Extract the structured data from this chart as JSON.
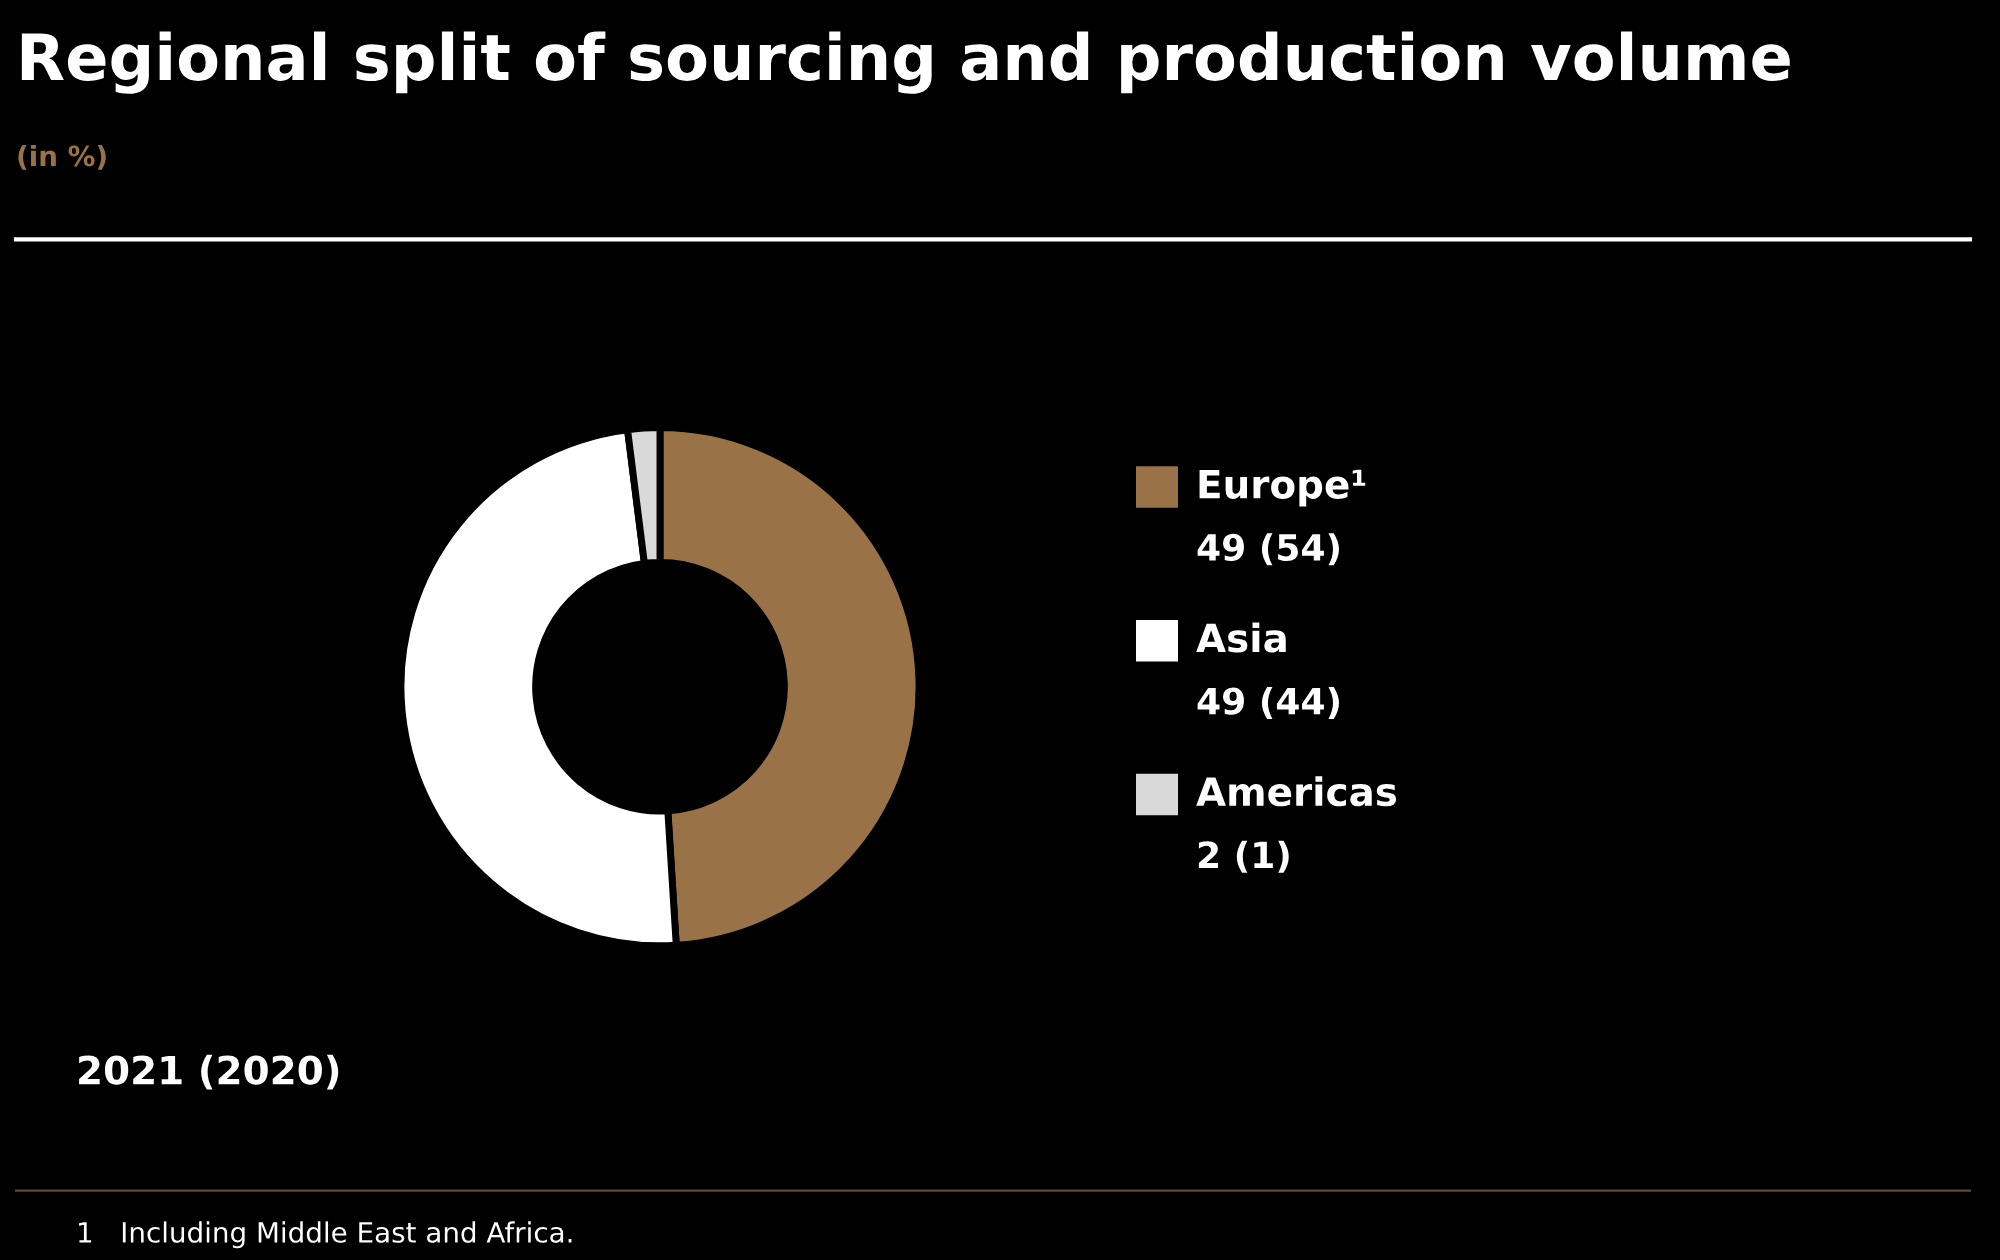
{
  "chart_data": {
    "type": "donut",
    "title": "Regional split of sourcing and production volume",
    "subtitle": "(in %)",
    "categories": [
      "Europe¹",
      "Asia",
      "Americas"
    ],
    "values": [
      49,
      49,
      2
    ],
    "colors": [
      "#9a7248",
      "#ffffff",
      "#d9d9d9"
    ],
    "value_labels": [
      "49 (54)",
      "49 (44)",
      "2 (1)"
    ],
    "legend": "right",
    "annotations": [
      "2021 (2020)",
      "1   Including Middle East and Africa."
    ]
  }
}
